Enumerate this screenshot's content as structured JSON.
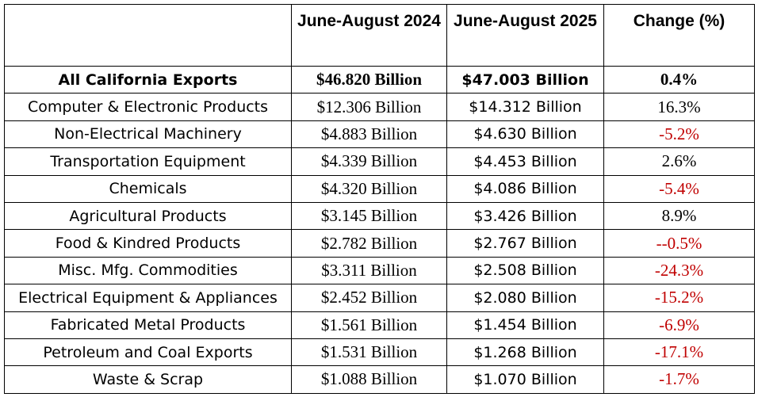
{
  "table": {
    "headers": {
      "category": "",
      "period_2024": "June-August 2024",
      "period_2025": "June-August 2025",
      "change": "Change (%)"
    },
    "rows": [
      {
        "category": "All California Exports",
        "y2024": "$46.820 Billion",
        "y2025": "$47.003 Billion",
        "change": "0.4%"
      },
      {
        "category": "Computer & Electronic Products",
        "y2024": "$12.306 Billion",
        "y2025": "$14.312 Billion",
        "change": "16.3%"
      },
      {
        "category": "Non-Electrical Machinery",
        "y2024": "$4.883 Billion",
        "y2025": "$4.630 Billion",
        "change": "-5.2%"
      },
      {
        "category": "Transportation Equipment",
        "y2024": "$4.339 Billion",
        "y2025": "$4.453 Billion",
        "change": "2.6%"
      },
      {
        "category": "Chemicals",
        "y2024": "$4.320 Billion",
        "y2025": "$4.086 Billion",
        "change": "-5.4%"
      },
      {
        "category": "Agricultural Products",
        "y2024": "$3.145 Billion",
        "y2025": "$3.426 Billion",
        "change": "8.9%"
      },
      {
        "category": "Food & Kindred Products",
        "y2024": "$2.782 Billion",
        "y2025": "$2.767 Billion",
        "change": "--0.5%"
      },
      {
        "category": "Misc. Mfg. Commodities",
        "y2024": "$3.311 Billion",
        "y2025": "$2.508 Billion",
        "change": "-24.3%"
      },
      {
        "category": "Electrical Equipment & Appliances",
        "y2024": "$2.452 Billion",
        "y2025": "$2.080 Billion",
        "change": "-15.2%"
      },
      {
        "category": "Fabricated Metal Products",
        "y2024": "$1.561 Billion",
        "y2025": "$1.454 Billion",
        "change": "-6.9%"
      },
      {
        "category": "Petroleum and Coal Exports",
        "y2024": "$1.531 Billion",
        "y2025": "$1.268 Billion",
        "change": "-17.1%"
      },
      {
        "category": "Waste & Scrap",
        "y2024": "$1.088 Billion",
        "y2025": "$1.070 Billion",
        "change": "-1.7%"
      }
    ]
  },
  "colors": {
    "text": "#000000",
    "negative": "#c00000",
    "border": "#000000"
  }
}
